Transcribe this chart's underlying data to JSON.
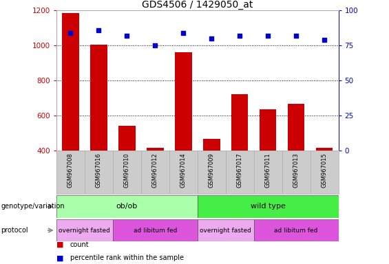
{
  "title": "GDS4506 / 1429050_at",
  "samples": [
    "GSM967008",
    "GSM967016",
    "GSM967010",
    "GSM967012",
    "GSM967014",
    "GSM967009",
    "GSM967017",
    "GSM967011",
    "GSM967013",
    "GSM967015"
  ],
  "counts": [
    1185,
    1005,
    540,
    415,
    960,
    465,
    720,
    635,
    665,
    415
  ],
  "percentiles": [
    84,
    86,
    82,
    75,
    84,
    80,
    82,
    82,
    82,
    79
  ],
  "ylim_left": [
    400,
    1200
  ],
  "ylim_right": [
    0,
    100
  ],
  "yticks_left": [
    400,
    600,
    800,
    1000,
    1200
  ],
  "yticks_right": [
    0,
    25,
    50,
    75,
    100
  ],
  "bar_color": "#cc0000",
  "dot_color": "#0000cc",
  "grid_color": "#000000",
  "genotype_groups": [
    {
      "label": "ob/ob",
      "start": 0,
      "end": 5,
      "color": "#aaffaa"
    },
    {
      "label": "wild type",
      "start": 5,
      "end": 10,
      "color": "#44ee44"
    }
  ],
  "protocol_groups": [
    {
      "label": "overnight fasted",
      "start": 0,
      "end": 2,
      "color": "#eeaaee"
    },
    {
      "label": "ad libitum fed",
      "start": 2,
      "end": 5,
      "color": "#dd55dd"
    },
    {
      "label": "overnight fasted",
      "start": 5,
      "end": 7,
      "color": "#eeaaee"
    },
    {
      "label": "ad libitum fed",
      "start": 7,
      "end": 10,
      "color": "#dd55dd"
    }
  ],
  "left_axis_color": "#cc0000",
  "right_axis_color": "#0000cc",
  "background_color": "#ffffff",
  "title_fontsize": 10,
  "tick_fontsize": 7.5,
  "bar_bottom": 400
}
